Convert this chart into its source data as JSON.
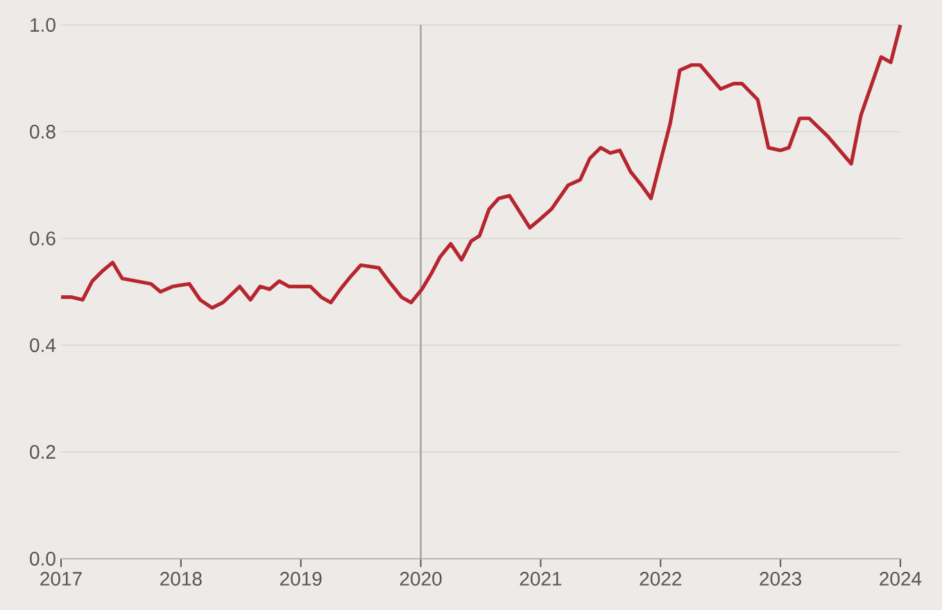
{
  "chart_data": {
    "type": "line",
    "x": [
      2017.0,
      2017.09,
      2017.18,
      2017.26,
      2017.35,
      2017.43,
      2017.51,
      2017.63,
      2017.75,
      2017.83,
      2017.93,
      2018.07,
      2018.16,
      2018.26,
      2018.35,
      2018.49,
      2018.58,
      2018.66,
      2018.74,
      2018.82,
      2018.9,
      2019.08,
      2019.17,
      2019.25,
      2019.33,
      2019.42,
      2019.5,
      2019.65,
      2019.75,
      2019.84,
      2019.92,
      2020.01,
      2020.09,
      2020.16,
      2020.25,
      2020.34,
      2020.42,
      2020.49,
      2020.57,
      2020.65,
      2020.74,
      2020.91,
      2020.99,
      2021.09,
      2021.23,
      2021.33,
      2021.41,
      2021.5,
      2021.58,
      2021.66,
      2021.75,
      2021.84,
      2021.92,
      2022.08,
      2022.16,
      2022.26,
      2022.33,
      2022.5,
      2022.61,
      2022.68,
      2022.81,
      2022.9,
      2023.0,
      2023.07,
      2023.16,
      2023.24,
      2023.4,
      2023.59,
      2023.67,
      2023.84,
      2023.92,
      2024.0
    ],
    "values": [
      0.49,
      0.49,
      0.485,
      0.52,
      0.54,
      0.555,
      0.525,
      0.52,
      0.515,
      0.5,
      0.51,
      0.515,
      0.485,
      0.47,
      0.48,
      0.51,
      0.485,
      0.51,
      0.505,
      0.52,
      0.51,
      0.51,
      0.49,
      0.48,
      0.505,
      0.53,
      0.55,
      0.545,
      0.515,
      0.49,
      0.48,
      0.505,
      0.535,
      0.565,
      0.59,
      0.56,
      0.595,
      0.605,
      0.655,
      0.675,
      0.68,
      0.62,
      0.635,
      0.655,
      0.7,
      0.71,
      0.75,
      0.77,
      0.76,
      0.765,
      0.725,
      0.7,
      0.675,
      0.815,
      0.915,
      0.925,
      0.925,
      0.88,
      0.89,
      0.89,
      0.86,
      0.77,
      0.765,
      0.77,
      0.825,
      0.825,
      0.79,
      0.74,
      0.83,
      0.94,
      0.93,
      1.0
    ],
    "color": "#b5262e",
    "xlim": [
      2017,
      2024
    ],
    "xticks": [
      2017,
      2018,
      2019,
      2020,
      2021,
      2022,
      2023,
      2024
    ],
    "ylim": [
      0,
      1.0
    ],
    "yticks": [
      {
        "value": 0,
        "label": "0.0"
      },
      {
        "value": 0.2,
        "label": "0.2"
      },
      {
        "value": 0.4,
        "label": "0.4"
      },
      {
        "value": 0.6,
        "label": "0.6"
      },
      {
        "value": 0.8,
        "label": "0.8"
      },
      {
        "value": 1.0,
        "label": "1.0"
      }
    ],
    "grid": "y",
    "marker": "none",
    "line_style": "solid",
    "ref_lines": [
      {
        "axis": "x",
        "value": 2020,
        "color": "#a39e9c"
      }
    ]
  }
}
